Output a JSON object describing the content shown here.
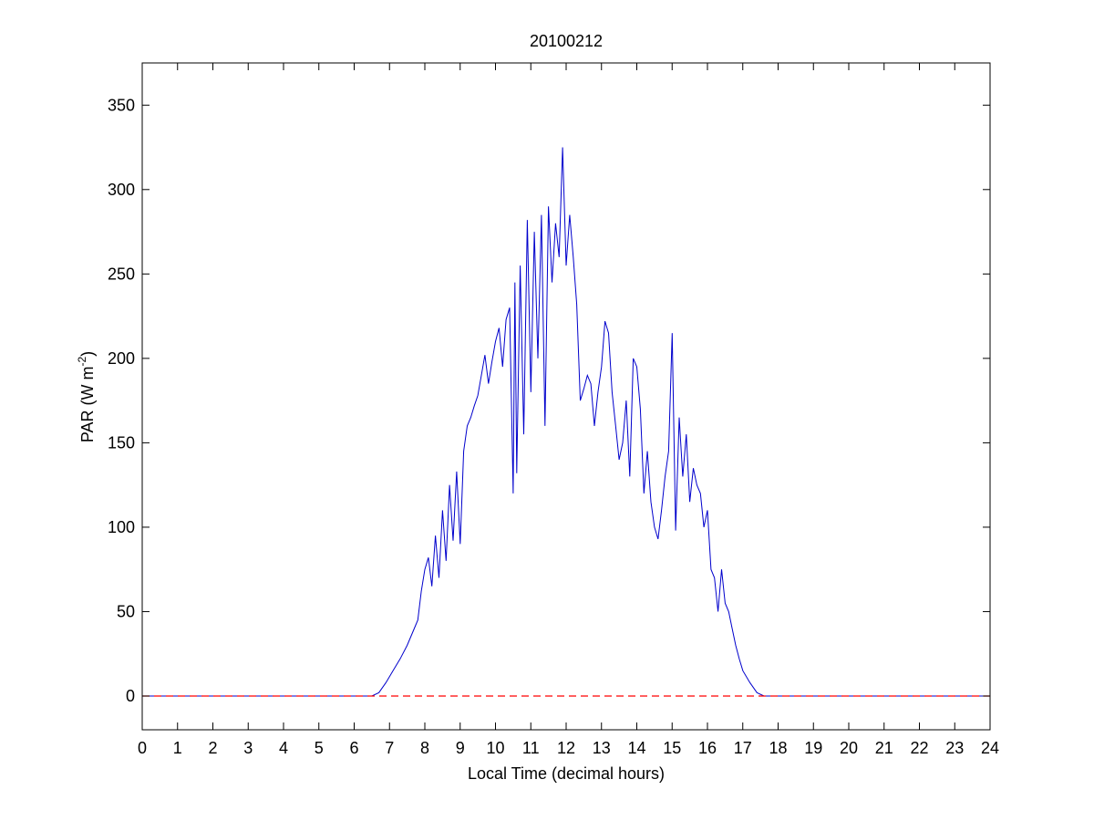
{
  "chart_data": {
    "type": "line",
    "title": "20100212",
    "xlabel": "Local Time (decimal hours)",
    "ylabel_main": "PAR (W m",
    "ylabel_sup": "-2",
    "ylabel_close": ")",
    "xlim": [
      0,
      24
    ],
    "ylim": [
      -20,
      375
    ],
    "xticks": [
      0,
      1,
      2,
      3,
      4,
      5,
      6,
      7,
      8,
      9,
      10,
      11,
      12,
      13,
      14,
      15,
      16,
      17,
      18,
      19,
      20,
      21,
      22,
      23,
      24
    ],
    "yticks": [
      0,
      50,
      100,
      150,
      200,
      250,
      300,
      350
    ],
    "grid": false,
    "colors": {
      "series": "#0000cc",
      "reference": "#ff0000"
    },
    "series": [
      {
        "style": "solid",
        "x": [
          0,
          6.5,
          6.7,
          6.9,
          7.1,
          7.3,
          7.5,
          7.7,
          7.8,
          7.9,
          8.0,
          8.1,
          8.2,
          8.3,
          8.4,
          8.5,
          8.6,
          8.7,
          8.8,
          8.9,
          9.0,
          9.1,
          9.2,
          9.3,
          9.4,
          9.5,
          9.6,
          9.7,
          9.8,
          9.9,
          10.0,
          10.1,
          10.2,
          10.3,
          10.4,
          10.5,
          10.55,
          10.6,
          10.7,
          10.8,
          10.9,
          11.0,
          11.1,
          11.2,
          11.3,
          11.4,
          11.5,
          11.6,
          11.7,
          11.8,
          11.9,
          12.0,
          12.1,
          12.2,
          12.3,
          12.4,
          12.5,
          12.6,
          12.7,
          12.8,
          12.9,
          13.0,
          13.1,
          13.2,
          13.3,
          13.4,
          13.5,
          13.6,
          13.7,
          13.8,
          13.9,
          14.0,
          14.1,
          14.2,
          14.3,
          14.4,
          14.5,
          14.6,
          14.7,
          14.8,
          14.9,
          15.0,
          15.1,
          15.2,
          15.3,
          15.4,
          15.5,
          15.6,
          15.7,
          15.8,
          15.9,
          16.0,
          16.1,
          16.2,
          16.3,
          16.4,
          16.5,
          16.6,
          16.7,
          16.8,
          16.9,
          17.0,
          17.2,
          17.4,
          17.6,
          17.8,
          18.0,
          24
        ],
        "y": [
          0,
          0,
          2,
          8,
          15,
          22,
          30,
          40,
          45,
          62,
          75,
          82,
          65,
          95,
          70,
          110,
          80,
          125,
          92,
          133,
          90,
          145,
          160,
          165,
          172,
          178,
          190,
          202,
          185,
          198,
          210,
          218,
          195,
          223,
          230,
          120,
          245,
          132,
          255,
          155,
          282,
          180,
          275,
          200,
          285,
          160,
          290,
          245,
          280,
          260,
          325,
          255,
          285,
          260,
          232,
          175,
          182,
          190,
          185,
          160,
          180,
          195,
          222,
          215,
          180,
          160,
          140,
          150,
          175,
          130,
          200,
          195,
          170,
          120,
          145,
          115,
          100,
          93,
          110,
          130,
          145,
          215,
          98,
          165,
          130,
          155,
          115,
          135,
          125,
          120,
          100,
          110,
          75,
          70,
          50,
          75,
          55,
          50,
          40,
          30,
          22,
          15,
          8,
          2,
          0,
          0,
          0,
          0
        ]
      },
      {
        "style": "dashed",
        "x": [
          0,
          24
        ],
        "y": [
          0,
          0
        ]
      }
    ]
  }
}
